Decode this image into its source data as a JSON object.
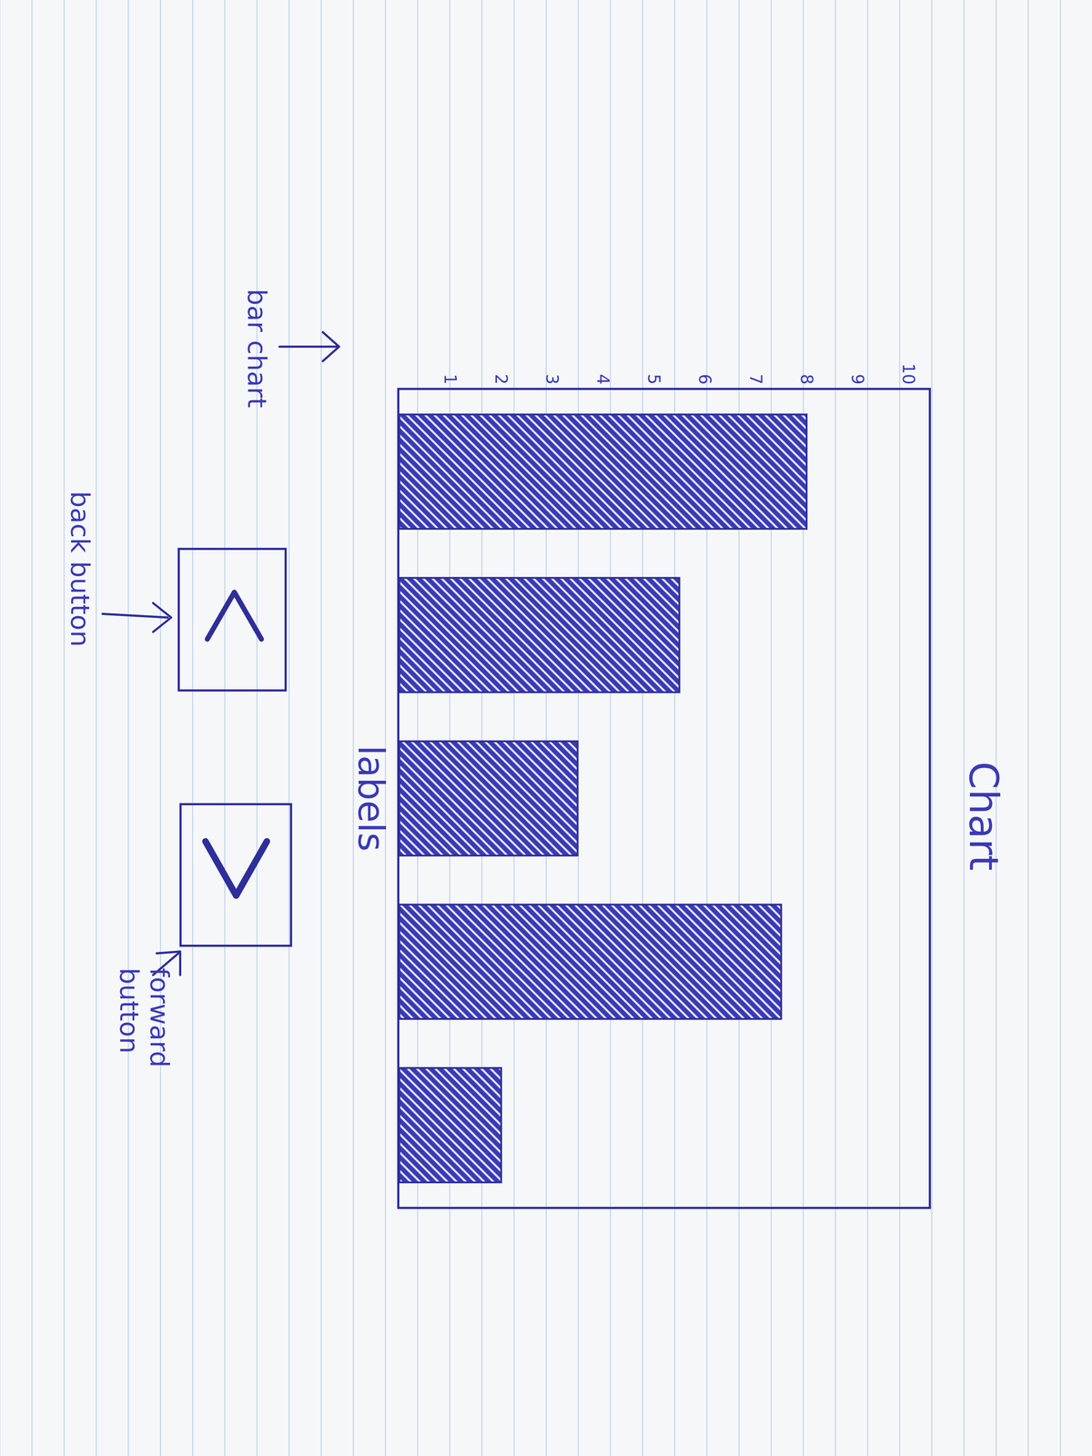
{
  "chart_data": {
    "type": "bar",
    "title": "Chart",
    "x_label": "labels",
    "categories": [
      null,
      null,
      null,
      null,
      null
    ],
    "values": [
      8,
      5.5,
      3.5,
      7.5,
      2
    ],
    "color": "#3a3ab8",
    "ylim": [
      0,
      10.4
    ],
    "yticks": [
      1,
      2,
      3,
      4,
      5,
      6,
      7,
      8,
      9,
      10
    ],
    "grid": false,
    "tick_labels": "y",
    "annotations": [
      "bar chart",
      "back button",
      "forward button"
    ]
  }
}
